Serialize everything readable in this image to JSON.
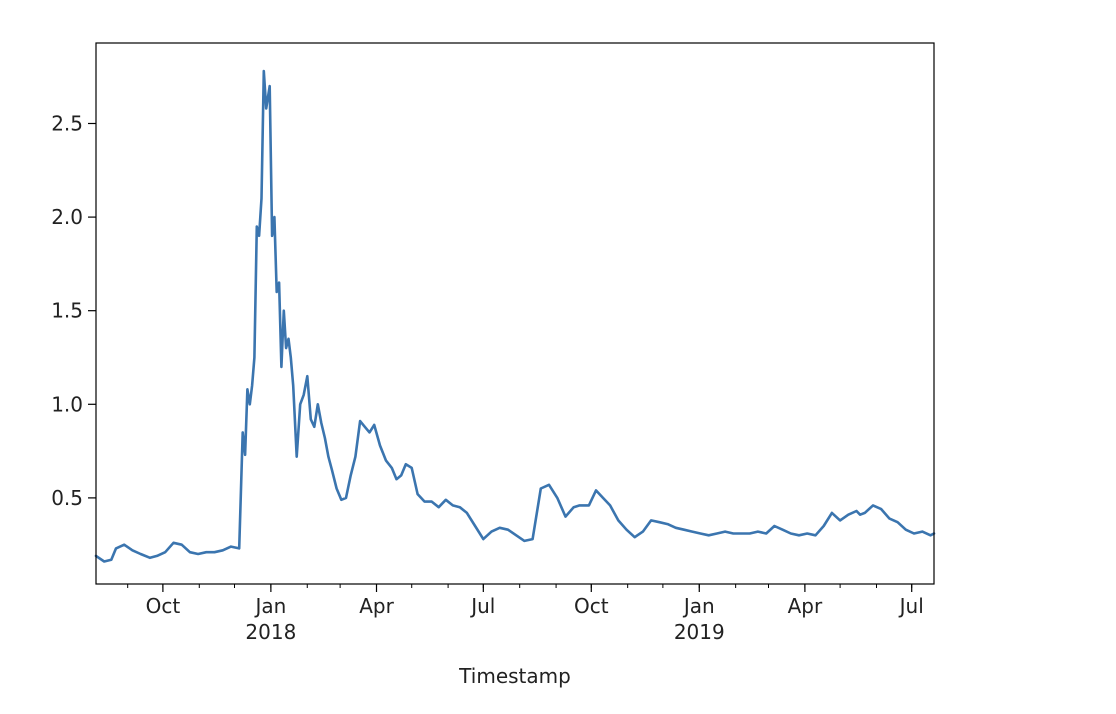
{
  "chart_data": {
    "type": "line",
    "title": "",
    "xlabel": "Timestamp",
    "ylabel": "",
    "x_axis_type": "date",
    "xlim": [
      "2017-08-05",
      "2019-07-20"
    ],
    "ylim": [
      0.04,
      2.93
    ],
    "grid": false,
    "legend": "none",
    "y_ticks": [
      {
        "value": 0.5,
        "label": "0.5"
      },
      {
        "value": 1.0,
        "label": "1.0"
      },
      {
        "value": 1.5,
        "label": "1.5"
      },
      {
        "value": 2.0,
        "label": "2.0"
      },
      {
        "value": 2.5,
        "label": "2.5"
      }
    ],
    "x_ticks": [
      {
        "date": "2017-10-01",
        "label": "Oct",
        "sublabel": ""
      },
      {
        "date": "2018-01-01",
        "label": "Jan",
        "sublabel": "2018"
      },
      {
        "date": "2018-04-01",
        "label": "Apr",
        "sublabel": ""
      },
      {
        "date": "2018-07-01",
        "label": "Jul",
        "sublabel": ""
      },
      {
        "date": "2018-10-01",
        "label": "Oct",
        "sublabel": ""
      },
      {
        "date": "2019-01-01",
        "label": "Jan",
        "sublabel": "2019"
      },
      {
        "date": "2019-04-01",
        "label": "Apr",
        "sublabel": ""
      },
      {
        "date": "2019-07-01",
        "label": "Jul",
        "sublabel": ""
      }
    ],
    "series": [
      {
        "color": "#3b75af",
        "x": [
          "2017-08-05",
          "2017-08-12",
          "2017-08-18",
          "2017-08-22",
          "2017-08-29",
          "2017-09-05",
          "2017-09-12",
          "2017-09-20",
          "2017-09-26",
          "2017-10-03",
          "2017-10-10",
          "2017-10-17",
          "2017-10-24",
          "2017-10-31",
          "2017-11-07",
          "2017-11-14",
          "2017-11-21",
          "2017-11-28",
          "2017-12-05",
          "2017-12-08",
          "2017-12-10",
          "2017-12-12",
          "2017-12-14",
          "2017-12-16",
          "2017-12-18",
          "2017-12-20",
          "2017-12-22",
          "2017-12-24",
          "2017-12-26",
          "2017-12-28",
          "2017-12-31",
          "2018-01-02",
          "2018-01-04",
          "2018-01-06",
          "2018-01-08",
          "2018-01-10",
          "2018-01-12",
          "2018-01-14",
          "2018-01-16",
          "2018-01-18",
          "2018-01-20",
          "2018-01-23",
          "2018-01-26",
          "2018-01-29",
          "2018-02-01",
          "2018-02-04",
          "2018-02-07",
          "2018-02-10",
          "2018-02-13",
          "2018-02-16",
          "2018-02-19",
          "2018-02-22",
          "2018-02-26",
          "2018-03-02",
          "2018-03-06",
          "2018-03-10",
          "2018-03-14",
          "2018-03-18",
          "2018-03-22",
          "2018-03-26",
          "2018-03-30",
          "2018-04-04",
          "2018-04-09",
          "2018-04-14",
          "2018-04-18",
          "2018-04-22",
          "2018-04-26",
          "2018-05-01",
          "2018-05-06",
          "2018-05-12",
          "2018-05-18",
          "2018-05-24",
          "2018-05-30",
          "2018-06-05",
          "2018-06-11",
          "2018-06-17",
          "2018-06-24",
          "2018-07-01",
          "2018-07-08",
          "2018-07-15",
          "2018-07-22",
          "2018-07-29",
          "2018-08-05",
          "2018-08-12",
          "2018-08-19",
          "2018-08-26",
          "2018-09-02",
          "2018-09-09",
          "2018-09-16",
          "2018-09-21",
          "2018-09-24",
          "2018-09-29",
          "2018-10-05",
          "2018-10-11",
          "2018-10-17",
          "2018-10-24",
          "2018-10-31",
          "2018-11-07",
          "2018-11-14",
          "2018-11-21",
          "2018-11-28",
          "2018-12-05",
          "2018-12-12",
          "2018-12-19",
          "2018-12-26",
          "2019-01-02",
          "2019-01-09",
          "2019-01-16",
          "2019-01-23",
          "2019-01-30",
          "2019-02-06",
          "2019-02-13",
          "2019-02-20",
          "2019-02-27",
          "2019-03-06",
          "2019-03-13",
          "2019-03-20",
          "2019-03-27",
          "2019-04-03",
          "2019-04-10",
          "2019-04-17",
          "2019-04-24",
          "2019-05-01",
          "2019-05-08",
          "2019-05-15",
          "2019-05-18",
          "2019-05-22",
          "2019-05-29",
          "2019-06-05",
          "2019-06-12",
          "2019-06-19",
          "2019-06-26",
          "2019-07-03",
          "2019-07-10",
          "2019-07-17",
          "2019-07-20"
        ],
        "values": [
          0.19,
          0.16,
          0.17,
          0.23,
          0.25,
          0.22,
          0.2,
          0.18,
          0.19,
          0.21,
          0.26,
          0.25,
          0.21,
          0.2,
          0.21,
          0.21,
          0.22,
          0.24,
          0.23,
          0.85,
          0.73,
          1.08,
          1.0,
          1.1,
          1.25,
          1.95,
          1.9,
          2.1,
          2.78,
          2.58,
          2.7,
          1.9,
          2.0,
          1.6,
          1.65,
          1.2,
          1.5,
          1.3,
          1.35,
          1.25,
          1.1,
          0.72,
          1.0,
          1.05,
          1.15,
          0.92,
          0.88,
          1.0,
          0.9,
          0.82,
          0.72,
          0.65,
          0.55,
          0.49,
          0.5,
          0.62,
          0.72,
          0.91,
          0.88,
          0.85,
          0.89,
          0.78,
          0.7,
          0.66,
          0.6,
          0.62,
          0.68,
          0.66,
          0.52,
          0.48,
          0.48,
          0.45,
          0.49,
          0.46,
          0.45,
          0.42,
          0.35,
          0.28,
          0.32,
          0.34,
          0.33,
          0.3,
          0.27,
          0.28,
          0.55,
          0.57,
          0.5,
          0.4,
          0.45,
          0.46,
          0.46,
          0.46,
          0.54,
          0.5,
          0.46,
          0.38,
          0.33,
          0.29,
          0.32,
          0.38,
          0.37,
          0.36,
          0.34,
          0.33,
          0.32,
          0.31,
          0.3,
          0.31,
          0.32,
          0.31,
          0.31,
          0.31,
          0.32,
          0.31,
          0.35,
          0.33,
          0.31,
          0.3,
          0.31,
          0.3,
          0.35,
          0.42,
          0.38,
          0.41,
          0.43,
          0.41,
          0.42,
          0.46,
          0.44,
          0.39,
          0.37,
          0.33,
          0.31,
          0.32,
          0.3,
          0.31
        ]
      }
    ]
  }
}
